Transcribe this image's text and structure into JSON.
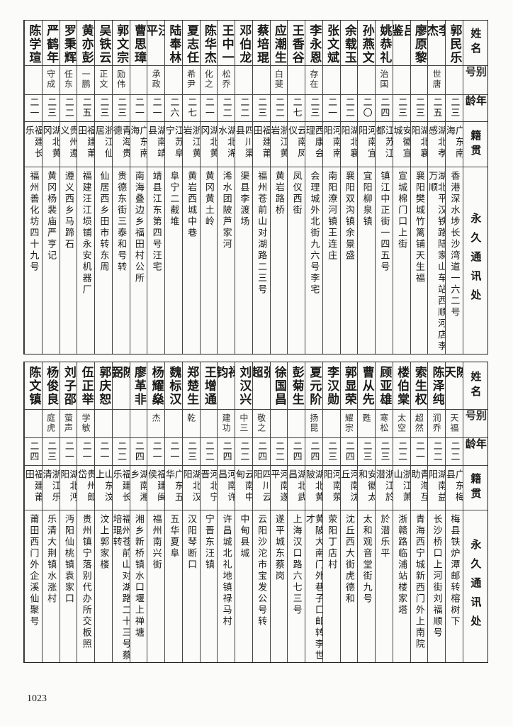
{
  "headers": {
    "name": "姓名",
    "alias": "别号",
    "age": "年龄",
    "hometown": "籍贯",
    "address": "永久通讯处"
  },
  "top": [
    {
      "name": "郭民乐",
      "alias": "",
      "age": "二三",
      "hometown": "广东南海",
      "address": "香港深水埗长沙湾道一六二号"
    },
    {
      "name": "李杰",
      "alias": "世唐",
      "age": "二五",
      "hometown": "湖北孝感",
      "address": "湖北平汉铁路陆家山车站西顺河店李万顺"
    },
    {
      "name": "廖原黎",
      "alias": "",
      "age": "二三",
      "hometown": "湖北襄阳",
      "address": "襄阳樊城竹篱铺天生福"
    },
    {
      "name": "吕鉴",
      "alias": "",
      "age": "二三",
      "hometown": "安徽宣城",
      "address": "宣城棉门口上街"
    },
    {
      "name": "姚恭礼",
      "alias": "治国",
      "age": "二四",
      "hometown": "江苏江都",
      "address": "镇江中正街一四五号"
    },
    {
      "name": "孙燕文",
      "alias": "",
      "age": "二〇",
      "hometown": "河南宜阳",
      "address": "宜阳柳泉镇"
    },
    {
      "name": "余载玉",
      "alias": "",
      "age": "二二",
      "hometown": "湖北襄阳",
      "address": "襄阳双沟镇余景盛"
    },
    {
      "name": "张文斌",
      "alias": "",
      "age": "二一",
      "hometown": "河南南阳",
      "address": "南阳潦河镇王连庄"
    },
    {
      "name": "李永恩",
      "alias": "存在",
      "age": "二三",
      "hometown": "西康会理",
      "address": "会理城外北街九六号李宅"
    },
    {
      "name": "王香谷",
      "alias": "",
      "age": "二七",
      "hometown": "云南凤仪",
      "address": "凤仪西街"
    },
    {
      "name": "应潮生",
      "alias": "白斐",
      "age": "二二",
      "hometown": "浙江黄岩",
      "address": "黄岩路桥"
    },
    {
      "name": "蔡培琨",
      "alias": "",
      "age": "二三",
      "hometown": "福建莆田",
      "address": "福州苍前山对湖路二三号"
    },
    {
      "name": "邓伯龙",
      "alias": "",
      "age": "二二",
      "hometown": "四川渠县",
      "address": "渠县李渡场"
    },
    {
      "name": "王中一",
      "alias": "松乔",
      "age": "二二",
      "hometown": "湖北浠水",
      "address": "浠水团陂芦家河"
    },
    {
      "name": "陈华杰",
      "alias": "化之",
      "age": "二一",
      "hometown": "湖北黄冈",
      "address": "黄冈黄土岭"
    },
    {
      "name": "夏志任",
      "alias": "希尹",
      "age": "二七",
      "hometown": "浙江黄岩",
      "address": "黄岩西城中巷"
    },
    {
      "name": "陆奉林",
      "alias": "",
      "age": "二六",
      "hometown": "江苏阜宁",
      "address": "阜宁二截堆"
    },
    {
      "name": "汪平",
      "alias": "承政",
      "age": "二一",
      "hometown": "湖南靖县",
      "address": "靖县江东第四号汪宅"
    },
    {
      "name": "曹思璋",
      "alias": "",
      "age": "二一",
      "hometown": "广东南海",
      "address": "南海叠边乡福田村公所"
    },
    {
      "name": "郭文宗",
      "alias": "励伟",
      "age": "二三",
      "hometown": "青海贵德",
      "address": "贵德东街三泰和号转"
    },
    {
      "name": "吴铁云",
      "alias": "正文",
      "age": "二三",
      "hometown": "浙江仙居",
      "address": "仙居西乡田市转东周"
    },
    {
      "name": "黄亦彭",
      "alias": "一鹏",
      "age": "二五",
      "hometown": "福建莆田",
      "address": "福建汪江埙铺永安机器厂"
    },
    {
      "name": "罗秉辉",
      "alias": "任东",
      "age": "二二",
      "hometown": "贵州遵义",
      "address": "遵义西乡马蹄石"
    },
    {
      "name": "严鹤年",
      "alias": "守成",
      "age": "二三",
      "hometown": "湖北黄冈",
      "address": "黄冈杨裴庙严亨记"
    },
    {
      "name": "陈学瑄",
      "alias": "",
      "age": "二一",
      "hometown": "福建长乐",
      "address": "福州善化坊四十九号"
    }
  ],
  "bottom": [
    {
      "name": "陈天",
      "alias": "天福",
      "age": "二二",
      "hometown": "广东梅县",
      "address": "梅县铁炉潭邮转榕树下"
    },
    {
      "name": "陈泽纯",
      "alias": "润乔",
      "age": "二二",
      "hometown": "湖南益阳",
      "address": "长沙桥口上河街刘福顺号"
    },
    {
      "name": "索生权",
      "alias": "超然",
      "age": "二一",
      "hometown": "青海互助",
      "address": "青海西宁城新西门外上南院"
    },
    {
      "name": "楼伯棠",
      "alias": "太空",
      "age": "二二",
      "hometown": "浙江萧山",
      "address": "浙赣路临浦站楼家塔"
    },
    {
      "name": "顾亚雄",
      "alias": "寒松",
      "age": "二三",
      "hometown": "浙江於潜",
      "address": "於潜乐平"
    },
    {
      "name": "曹从先",
      "alias": "甦",
      "age": "二三",
      "hometown": "安徽太和",
      "address": "太和观音堂街九号"
    },
    {
      "name": "郭显荣",
      "alias": "耀宗",
      "age": "二四",
      "hometown": "河南沈丘",
      "address": "沈丘西大街虎德和"
    },
    {
      "name": "李汉勋",
      "alias": "",
      "age": "二三",
      "hometown": "河南荥阳",
      "address": "荥阳丁店村"
    },
    {
      "name": "夏元阶",
      "alias": "扬昆",
      "age": "二四",
      "hometown": "湖北黄陂",
      "address": "黄陂大南门外巷子口邮转李世才"
    },
    {
      "name": "彭菊生",
      "alias": "",
      "age": "二四",
      "hometown": "湖北武昌",
      "address": "上海汉口路六七三号"
    },
    {
      "name": "徐国昌",
      "alias": "",
      "age": "二二",
      "hometown": "河南遂平",
      "address": "遂平城东蔡岗"
    },
    {
      "name": "张超",
      "alias": "敬之",
      "age": "二四",
      "hometown": "四川云阳",
      "address": "云阳沙沱市宝发公号转"
    },
    {
      "name": "刘汉兴",
      "alias": "中三",
      "age": "二二",
      "hometown": "云南中甸",
      "address": "中甸县城"
    },
    {
      "name": "禄钧",
      "alias": "建功",
      "age": "二四",
      "hometown": "河南许昌",
      "address": "许昌城北礼地镇禄马村"
    },
    {
      "name": "王增通",
      "alias": "",
      "age": "二二",
      "hometown": "河北宁晋",
      "address": "宁晋东汪镇"
    },
    {
      "name": "郑楚生",
      "alias": "乾",
      "age": "二三",
      "hometown": "湖北汉阳",
      "address": "汉阳琴断口"
    },
    {
      "name": "魏标汉",
      "alias": "",
      "age": "二一",
      "hometown": "广东五华",
      "address": "五华夏阜"
    },
    {
      "name": "杨耀燊",
      "alias": "杰",
      "age": "二一",
      "hometown": "福建闽侯",
      "address": "福州南兴街"
    },
    {
      "name": "廖革非",
      "alias": "",
      "age": "二四",
      "hometown": "湖南湘乡",
      "address": "湘乡新桥镇水口堰上禅塘"
    },
    {
      "name": "陈弼",
      "alias": "",
      "age": "二二",
      "hometown": "福建长乐",
      "address": "福州苍前山对湖路二十三号蔡培琨转"
    },
    {
      "name": "郭庆恕",
      "alias": "",
      "age": "二一",
      "hometown": "山东汶上",
      "address": "汶上郭家楼"
    },
    {
      "name": "伍正举",
      "alias": "学敏",
      "age": "二一",
      "hometown": "贵州郎岱",
      "address": "贵州镇宁落别代办所交板照"
    },
    {
      "name": "刘子邵",
      "alias": "萤声",
      "age": "二一",
      "hometown": "湖北沔阳",
      "address": "沔阳仙桃镇袁家口"
    },
    {
      "name": "杨俊良",
      "alias": "庭虎",
      "age": "二三",
      "hometown": "浙江乐清",
      "address": "乐清大荆镇水涨村"
    },
    {
      "name": "陈文镇",
      "alias": "",
      "age": "二四",
      "hometown": "福建莆田",
      "address": "莆田西门外企溪仙聚号"
    }
  ],
  "page_number": "1023"
}
